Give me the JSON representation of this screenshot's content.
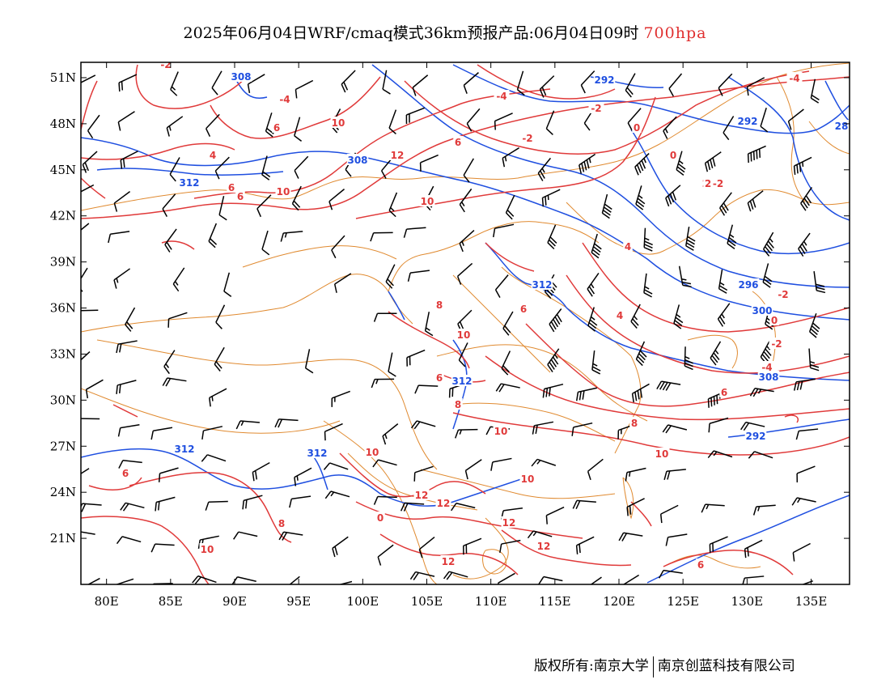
{
  "title": {
    "main": "2025年06月04日WRF/cmaq模式36km预报产品:06月04日09时",
    "level": "700hpa",
    "level_color": "#e03030"
  },
  "map": {
    "lon_range": [
      78,
      138
    ],
    "lat_range": [
      18,
      52
    ],
    "lat_ticks": [
      "51N",
      "48N",
      "45N",
      "42N",
      "39N",
      "36N",
      "33N",
      "30N",
      "27N",
      "24N",
      "21N"
    ],
    "lat_tick_values": [
      51,
      48,
      45,
      42,
      39,
      36,
      33,
      30,
      27,
      24,
      21
    ],
    "lon_ticks": [
      "80E",
      "85E",
      "90E",
      "95E",
      "100E",
      "105E",
      "110E",
      "115E",
      "120E",
      "125E",
      "130E",
      "135E"
    ],
    "lon_tick_values": [
      80,
      85,
      90,
      95,
      100,
      105,
      110,
      115,
      120,
      125,
      130,
      135
    ],
    "colors": {
      "height_contour": "#1f4fe0",
      "temperature_contour": "#e03a3a",
      "border": "#e08a30",
      "barb": "#000000"
    },
    "height_labels": [
      "308",
      "292",
      "292",
      "308",
      "312",
      "312",
      "296",
      "300",
      "308",
      "312",
      "312",
      "312",
      "292",
      "28"
    ],
    "temperature_labels": [
      "-2",
      "-4",
      "4",
      "6",
      "6",
      "10",
      "12",
      "10",
      "-4",
      "0",
      "-2",
      "6",
      "-2",
      "2",
      "4",
      "0",
      "2:-2",
      "-2",
      "-4",
      "6",
      "10",
      "8",
      "10",
      "6",
      "8",
      "6",
      "10",
      "10",
      "12",
      "12",
      "12",
      "12",
      "0",
      "6",
      "8",
      "10",
      "4",
      "0",
      "-2",
      "-4",
      "6",
      "8",
      "10",
      "12",
      "6",
      "10",
      "2"
    ]
  },
  "footer": {
    "left": "版权所有:南京大学",
    "right": "南京创蓝科技有限公司"
  }
}
